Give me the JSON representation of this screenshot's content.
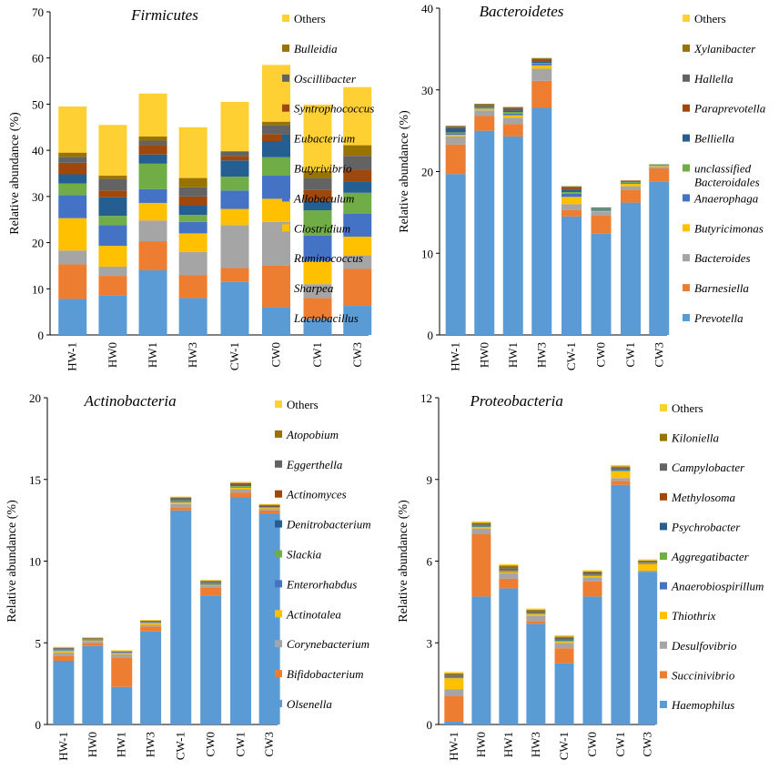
{
  "y_axis_label": "Relative abundance (%)",
  "colors": [
    "#5b9bd5",
    "#ed7d31",
    "#a5a5a5",
    "#ffc000",
    "#4472c4",
    "#70ad47",
    "#255e91",
    "#9e480e",
    "#636363",
    "#997300",
    "#ffd033"
  ],
  "chart_data": [
    {
      "type": "stacked-bar",
      "title": "Firmicutes",
      "ylabel": "Relative abundance (%)",
      "ylim": [
        0,
        70
      ],
      "yticks": [
        "0",
        "10",
        "20",
        "30",
        "40",
        "50",
        "60",
        "70"
      ],
      "categories": [
        "HW-1",
        "HW0",
        "HW1",
        "HW3",
        "CW-1",
        "CW0",
        "CW1",
        "CW3"
      ],
      "series": [
        {
          "name": "Lactobacillus",
          "values": [
            7.8,
            8.5,
            14,
            8,
            11.5,
            6,
            3.5,
            6.3
          ]
        },
        {
          "name": "Sharpea",
          "values": [
            7.5,
            4.3,
            6.3,
            5,
            3,
            9,
            4.5,
            8
          ]
        },
        {
          "name": "Ruminococcus",
          "values": [
            3,
            2,
            4.5,
            5,
            9.3,
            9.5,
            3,
            3
          ]
        },
        {
          "name": "Clostridium",
          "values": [
            7,
            4.5,
            3.8,
            4,
            3.5,
            5,
            5,
            4
          ]
        },
        {
          "name": "Allobaculum",
          "values": [
            5,
            4.5,
            3,
            2.5,
            4,
            5,
            5.5,
            5
          ]
        },
        {
          "name": "Butyrivibrio",
          "values": [
            2.5,
            2,
            5.5,
            1.5,
            3,
            4,
            5.5,
            4.5
          ]
        },
        {
          "name": "Eubacterium",
          "values": [
            2,
            4,
            2,
            2,
            3.5,
            3.5,
            2,
            2.5
          ]
        },
        {
          "name": "Syntrophococcus",
          "values": [
            2.5,
            1.5,
            2,
            2,
            1,
            1.5,
            2.5,
            2.5
          ]
        },
        {
          "name": "Oscillibacter",
          "values": [
            1.3,
            2.5,
            1,
            2,
            1,
            2,
            2.5,
            3
          ]
        },
        {
          "name": "Bulleidia",
          "values": [
            0.9,
            0.7,
            0.9,
            2,
            0,
            0.7,
            1.5,
            2.3
          ]
        },
        {
          "name": "Others",
          "values": [
            10,
            11,
            9.3,
            11,
            10.7,
            12.3,
            14.4,
            12.6
          ]
        }
      ]
    },
    {
      "type": "stacked-bar",
      "title": "Bacteroidetes",
      "ylabel": "Relative abundance (%)",
      "ylim": [
        0,
        40
      ],
      "yticks": [
        "0",
        "10",
        "20",
        "30",
        "40"
      ],
      "categories": [
        "HW-1",
        "HW0",
        "HW1",
        "HW3",
        "CW-1",
        "CW0",
        "CW1",
        "CW3"
      ],
      "series": [
        {
          "name": "Prevotella",
          "values": [
            19.7,
            25,
            24.3,
            27.8,
            14.5,
            12.4,
            16.2,
            18.8
          ]
        },
        {
          "name": "Barnesiella",
          "values": [
            3.6,
            1.8,
            1.5,
            3.3,
            0.8,
            2.2,
            1.6,
            1.6
          ]
        },
        {
          "name": "Bacteroides",
          "values": [
            1,
            0.7,
            0.8,
            1.5,
            0.7,
            0.5,
            0.4,
            0.2
          ]
        },
        {
          "name": "Butyricimonas",
          "values": [
            0.2,
            0.2,
            0.3,
            0.4,
            0.9,
            0.1,
            0.3,
            0.1
          ]
        },
        {
          "name": "Anaerophaga",
          "values": [
            0.2,
            0.1,
            0.2,
            0.2,
            0.4,
            0.2,
            0.1,
            0.1
          ]
        },
        {
          "name": "unclassified Bacteroidales",
          "values": [
            0.1,
            0.1,
            0.2,
            0.1,
            0.2,
            0.1,
            0.1,
            0.1
          ]
        },
        {
          "name": "Belliella",
          "values": [
            0.5,
            0.1,
            0.2,
            0.2,
            0.3,
            0.1,
            0.1,
            0
          ]
        },
        {
          "name": "Paraprevotella",
          "values": [
            0.1,
            0.1,
            0.2,
            0.2,
            0.2,
            0,
            0.1,
            0
          ]
        },
        {
          "name": "Hallella",
          "values": [
            0.1,
            0.1,
            0.1,
            0.1,
            0.1,
            0,
            0,
            0
          ]
        },
        {
          "name": "Xylanibacter",
          "values": [
            0.1,
            0.1,
            0.1,
            0.1,
            0.1,
            0,
            0,
            0
          ]
        },
        {
          "name": "Others",
          "values": [
            0,
            0,
            0,
            0,
            0,
            0,
            0,
            0
          ]
        }
      ]
    },
    {
      "type": "stacked-bar",
      "title": "Actinobacteria",
      "ylabel": "Relative abundance (%)",
      "ylim": [
        0,
        20
      ],
      "yticks": [
        "0",
        "5",
        "10",
        "15",
        "20"
      ],
      "categories": [
        "HW-1",
        "HW0",
        "HW1",
        "HW3",
        "CW-1",
        "CW0",
        "CW1",
        "CW3"
      ],
      "series": [
        {
          "name": "Olsenella",
          "values": [
            3.9,
            4.8,
            2.3,
            5.7,
            13.1,
            7.9,
            13.9,
            12.9
          ]
        },
        {
          "name": "Bifidobacterium",
          "values": [
            0.3,
            0.2,
            1.8,
            0.3,
            0.2,
            0.5,
            0.3,
            0.2
          ]
        },
        {
          "name": "Corynebacterium",
          "values": [
            0.2,
            0.1,
            0.2,
            0.1,
            0.2,
            0.1,
            0.2,
            0.1
          ]
        },
        {
          "name": "Actinotalea",
          "values": [
            0.1,
            0.05,
            0.05,
            0.1,
            0.1,
            0.05,
            0.1,
            0.05
          ]
        },
        {
          "name": "Enterorhabdus",
          "values": [
            0.05,
            0.03,
            0.03,
            0.03,
            0.05,
            0.05,
            0.05,
            0.03
          ]
        },
        {
          "name": "Slackia",
          "values": [
            0.03,
            0.02,
            0.02,
            0.02,
            0.05,
            0.05,
            0.05,
            0.03
          ]
        },
        {
          "name": "Denitrobacterium",
          "values": [
            0.03,
            0.02,
            0.02,
            0.02,
            0.05,
            0.05,
            0.05,
            0.03
          ]
        },
        {
          "name": "Actinomyces",
          "values": [
            0.02,
            0.02,
            0.02,
            0.02,
            0.03,
            0.03,
            0.03,
            0.03
          ]
        },
        {
          "name": "Eggerthella",
          "values": [
            0.05,
            0.03,
            0.03,
            0.03,
            0.1,
            0.05,
            0.1,
            0.05
          ]
        },
        {
          "name": "Atopobium",
          "values": [
            0.02,
            0.03,
            0.03,
            0.03,
            0.02,
            0.02,
            0.02,
            0.03
          ]
        },
        {
          "name": "Others",
          "values": [
            0.05,
            0.05,
            0.05,
            0.05,
            0.05,
            0.05,
            0.05,
            0.05
          ]
        }
      ]
    },
    {
      "type": "stacked-bar",
      "title": "Proteobacteria",
      "ylabel": "Relative abundance (%)",
      "ylim": [
        0,
        12
      ],
      "yticks": [
        "0",
        "3",
        "6",
        "9",
        "12"
      ],
      "categories": [
        "HW-1",
        "HW0",
        "HW1",
        "HW3",
        "CW-1",
        "CW0",
        "CW1",
        "CW3"
      ],
      "series": [
        {
          "name": "Haemophilus",
          "values": [
            0.1,
            4.7,
            5,
            3.7,
            2.25,
            4.7,
            8.8,
            5.6
          ]
        },
        {
          "name": "Succinivibrio",
          "values": [
            0.95,
            2.3,
            0.35,
            0.1,
            0.55,
            0.55,
            0.15,
            0
          ]
        },
        {
          "name": "Desulfovibrio",
          "values": [
            0.25,
            0.2,
            0.2,
            0.2,
            0.2,
            0.15,
            0.1,
            0.05
          ]
        },
        {
          "name": "Thiothrix",
          "values": [
            0.4,
            0.05,
            0.05,
            0.05,
            0.05,
            0.05,
            0.25,
            0.25
          ]
        },
        {
          "name": "Anaerobiospirillum",
          "values": [
            0.02,
            0.02,
            0.02,
            0.02,
            0.02,
            0.02,
            0.02,
            0.02
          ]
        },
        {
          "name": "Aggregatibacter",
          "values": [
            0.02,
            0.02,
            0.02,
            0.02,
            0.02,
            0.02,
            0.02,
            0.02
          ]
        },
        {
          "name": "Psychrobacter",
          "values": [
            0.02,
            0.02,
            0.02,
            0.02,
            0.02,
            0.02,
            0.02,
            0.02
          ]
        },
        {
          "name": "Methylosoma",
          "values": [
            0.02,
            0.02,
            0.02,
            0.02,
            0.02,
            0.02,
            0.02,
            0.02
          ]
        },
        {
          "name": "Campylobacter",
          "values": [
            0.05,
            0.04,
            0.06,
            0.04,
            0.05,
            0.05,
            0.05,
            0.02
          ]
        },
        {
          "name": "Kiloniella",
          "values": [
            0.05,
            0.04,
            0.1,
            0.04,
            0.05,
            0.04,
            0.05,
            0.02
          ]
        },
        {
          "name": "Others",
          "values": [
            0.05,
            0.05,
            0.05,
            0.05,
            0.05,
            0.05,
            0.05,
            0.05
          ]
        }
      ]
    }
  ]
}
